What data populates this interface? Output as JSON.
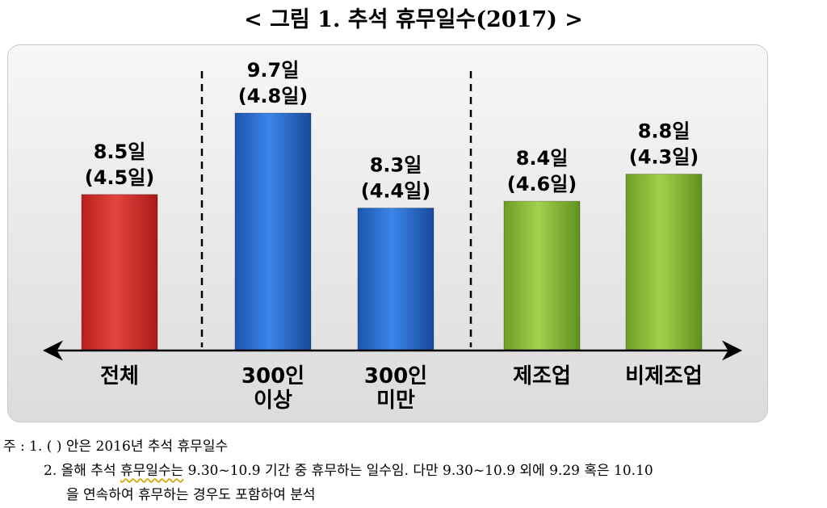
{
  "title": "< 그림 1. 추석 휴무일수(2017) >",
  "chart_data": {
    "type": "bar",
    "categories": [
      [
        "전체"
      ],
      [
        "300인",
        "이상"
      ],
      [
        "300인",
        "미만"
      ],
      [
        "제조업"
      ],
      [
        "비제조업"
      ]
    ],
    "values": [
      8.5,
      9.7,
      8.3,
      8.4,
      8.8
    ],
    "values_2016": [
      4.5,
      4.8,
      4.4,
      4.6,
      4.3
    ],
    "value_labels": [
      "8.5일",
      "9.7일",
      "8.3일",
      "8.4일",
      "8.8일"
    ],
    "sub_labels": [
      "(4.5일)",
      "(4.8일)",
      "(4.4일)",
      "(4.6일)",
      "(4.3일)"
    ],
    "bar_colors": [
      "#d9312c",
      "#2a6fd1",
      "#2a6fd1",
      "#8cc03a",
      "#8cc03a"
    ],
    "baseline_value": 6.2,
    "ylim": [
      6.2,
      10.8
    ],
    "group_separators_after": [
      0,
      2
    ],
    "xlabel": "",
    "ylabel": ""
  },
  "notes": {
    "line1": "주 : 1. (    ) 안은 2016년 추석 휴무일수",
    "line2_num": "2. 올해 추석 ",
    "line2_squiggle": "휴무일수는",
    "line2_rest": " 9.30~10.9 기간 중 휴무하는 일수임. 다만 9.30~10.9 외에 9.29 혹은 10.10",
    "line3": "을 연속하여 휴무하는 경우도 포함하여 분석"
  }
}
